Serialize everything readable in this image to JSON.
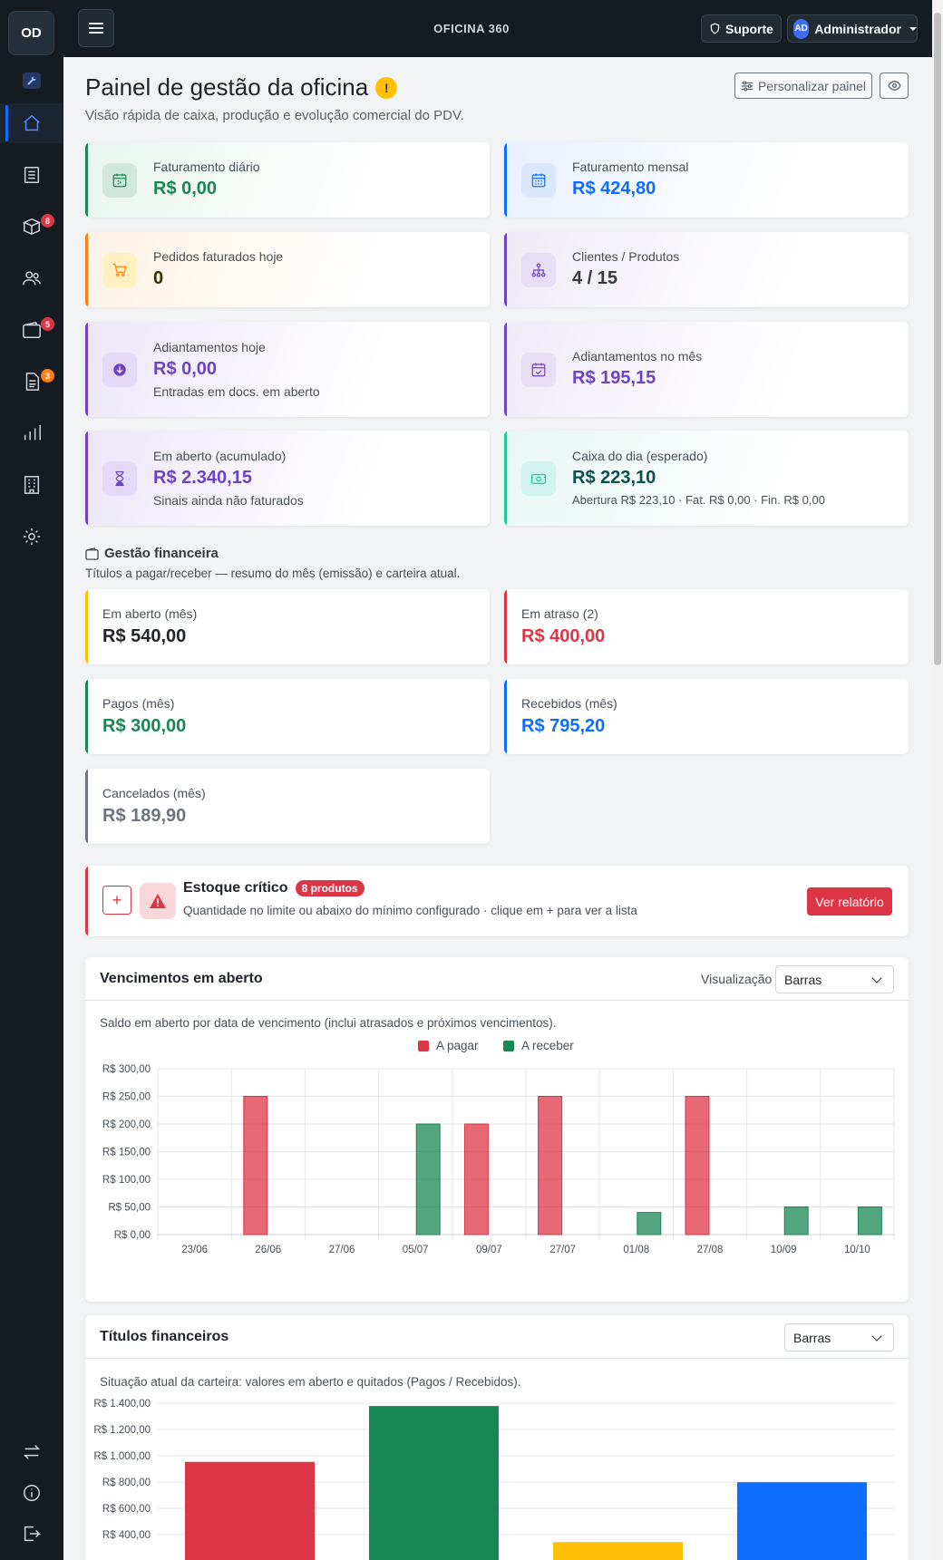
{
  "sidebar": {
    "logo": "OD",
    "nav": [
      {
        "name": "home-icon",
        "badge": ""
      },
      {
        "name": "list-icon",
        "badge": ""
      },
      {
        "name": "box-icon",
        "badge": "8"
      },
      {
        "name": "users-icon",
        "badge": ""
      },
      {
        "name": "wallet-icon",
        "badge": "5"
      },
      {
        "name": "document-icon",
        "badge": "3"
      },
      {
        "name": "bar-chart-icon",
        "badge": ""
      },
      {
        "name": "building-icon",
        "badge": ""
      },
      {
        "name": "gear-icon",
        "badge": ""
      }
    ],
    "bottom": [
      "swap-icon",
      "info-icon",
      "logout-icon"
    ]
  },
  "topbar": {
    "brand": "OFICINA 360",
    "support_label": "Suporte",
    "avatar_initials": "AD",
    "user_label": "Administrador"
  },
  "header": {
    "title": "Painel de gestão da oficina",
    "warning_glyph": "!",
    "subtitle": "Visão rápida de caixa, produção e evolução comercial do PDV.",
    "customize_label": "Personalizar painel"
  },
  "kpis": [
    {
      "label": "Faturamento diário",
      "value": "R$ 0,00",
      "note": "",
      "color": "#198754",
      "icon": "calendar-day-icon"
    },
    {
      "label": "Faturamento mensal",
      "value": "R$ 424,80",
      "note": "",
      "color": "#0d6efd",
      "icon": "calendar-month-icon"
    },
    {
      "label": "Pedidos faturados hoje",
      "value": "0",
      "note": "",
      "color": "#fd7e14",
      "icon": "cart-icon"
    },
    {
      "label": "Clientes / Produtos",
      "value": "4 / 15",
      "note": "",
      "color": "#6f42c1",
      "icon": "hierarchy-icon"
    },
    {
      "label": "Adiantamentos hoje",
      "value": "R$ 0,00",
      "note": "Entradas em docs. em aberto",
      "color": "#6f42c1",
      "icon": "download-icon"
    },
    {
      "label": "Adiantamentos no mês",
      "value": "R$ 195,15",
      "note": "",
      "color": "#6f42c1",
      "icon": "calendar-check-icon"
    },
    {
      "label": "Em aberto (acumulado)",
      "value": "R$ 2.340,15",
      "note": "Sinais ainda não faturados",
      "color": "#6f42c1",
      "icon": "hourglass-icon"
    },
    {
      "label": "Caixa do dia (esperado)",
      "value": "R$ 223,10",
      "note": "Abertura R$ 223,10 · Fat. R$ 0,00 · Fin. R$ 0,00",
      "color": "#20c997",
      "icon": "cash-icon"
    }
  ],
  "finance": {
    "title": "Gestão financeira",
    "subtitle": "Títulos a pagar/receber — resumo do mês (emissão) e carteira atual.",
    "cards": [
      {
        "label": "Em aberto (mês)",
        "value": "R$ 540,00",
        "color": "#ffc107",
        "value_color": "#212529"
      },
      {
        "label": "Em atraso (2)",
        "value": "R$ 400,00",
        "color": "#dc3545",
        "value_color": "#dc3545"
      },
      {
        "label": "Pagos (mês)",
        "value": "R$ 300,00",
        "color": "#198754",
        "value_color": "#198754"
      },
      {
        "label": "Recebidos (mês)",
        "value": "R$ 795,20",
        "color": "#0d6efd",
        "value_color": "#0d6efd"
      },
      {
        "label": "Cancelados (mês)",
        "value": "R$ 189,90",
        "color": "#6c757d",
        "value_color": "#6c757d"
      }
    ]
  },
  "stock_alert": {
    "title": "Estoque crítico",
    "badge": "8 produtos",
    "description": "Quantidade no limite ou abaixo do mínimo configurado · clique em + para ver a lista",
    "plus": "+",
    "button": "Ver relatório"
  },
  "due_chart": {
    "title": "Vencimentos em aberto",
    "view_label": "Visualização",
    "select_value": "Barras",
    "description": "Saldo em aberto por data de vencimento (inclui atrasados e próximos vencimentos)."
  },
  "titles_chart": {
    "title": "Títulos financeiros",
    "select_value": "Barras",
    "description": "Situação atual da carteira: valores em aberto e quitados (Pagos / Recebidos)."
  },
  "colors": {
    "pagar": "#dc3545",
    "receber": "#198754",
    "yellow": "#ffc107",
    "blue": "#0d6efd"
  },
  "chart_data": [
    {
      "type": "bar",
      "categories": [
        "23/06",
        "26/06",
        "27/06",
        "05/07",
        "09/07",
        "27/07",
        "01/08",
        "27/08",
        "10/09",
        "10/10"
      ],
      "series": [
        {
          "name": "A pagar",
          "values": [
            0,
            250,
            0,
            0,
            200,
            250,
            0,
            250,
            0,
            0
          ]
        },
        {
          "name": "A receber",
          "values": [
            0,
            0,
            0,
            200,
            0,
            0,
            40,
            0,
            50,
            50
          ]
        }
      ],
      "ylim": [
        0,
        300
      ],
      "yticks": [
        "R$ 300,00",
        "R$ 250,00",
        "R$ 200,00",
        "R$ 150,00",
        "R$ 100,00",
        "R$ 50,00",
        "R$ 0,00"
      ],
      "legend": "top-center",
      "grid": true
    },
    {
      "type": "bar",
      "categories": [
        "",
        "",
        "",
        ""
      ],
      "values": [
        950,
        1375,
        340,
        795.2
      ],
      "colors": [
        "#dc3545",
        "#198754",
        "#ffc107",
        "#0d6efd"
      ],
      "ylim": [
        0,
        1400
      ],
      "yticks": [
        "R$ 1.400,00",
        "R$ 1.200,00",
        "R$ 1.000,00",
        "R$ 800,00",
        "R$ 600,00",
        "R$ 400,00"
      ],
      "grid": true
    }
  ]
}
